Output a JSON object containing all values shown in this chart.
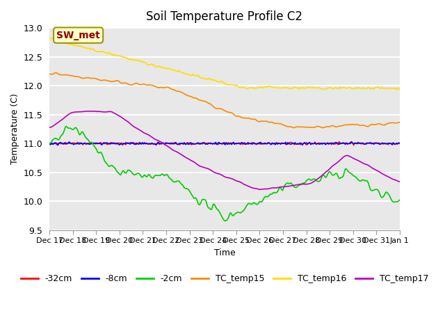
{
  "title": "Soil Temperature Profile C2",
  "xlabel": "Time",
  "ylabel": "Temperature (C)",
  "ylim": [
    9.5,
    13.0
  ],
  "yticks": [
    9.5,
    10.0,
    10.5,
    11.0,
    11.5,
    12.0,
    12.5,
    13.0
  ],
  "plot_bg_color": "#e8e8e8",
  "annotation_text": "SW_met",
  "annotation_bg": "#ffffcc",
  "annotation_border": "#999900",
  "annotation_text_color": "#8b0000",
  "legend_labels": [
    "-32cm",
    "-8cm",
    "-2cm",
    "TC_temp15",
    "TC_temp16",
    "TC_temp17"
  ],
  "line_colors": [
    "#ff0000",
    "#0000ff",
    "#00cc00",
    "#ff8800",
    "#ffdd00",
    "#bb00bb"
  ],
  "n_points": 336,
  "xtick_labels": [
    "Dec 17",
    "Dec 18",
    "Dec 19",
    "Dec 20",
    "Dec 21",
    "Dec 22",
    "Dec 23",
    "Dec 24",
    "Dec 25",
    "Dec 26",
    "Dec 27",
    "Dec 28",
    "Dec 29",
    "Dec 30",
    "Dec 31",
    "Jan 1"
  ]
}
